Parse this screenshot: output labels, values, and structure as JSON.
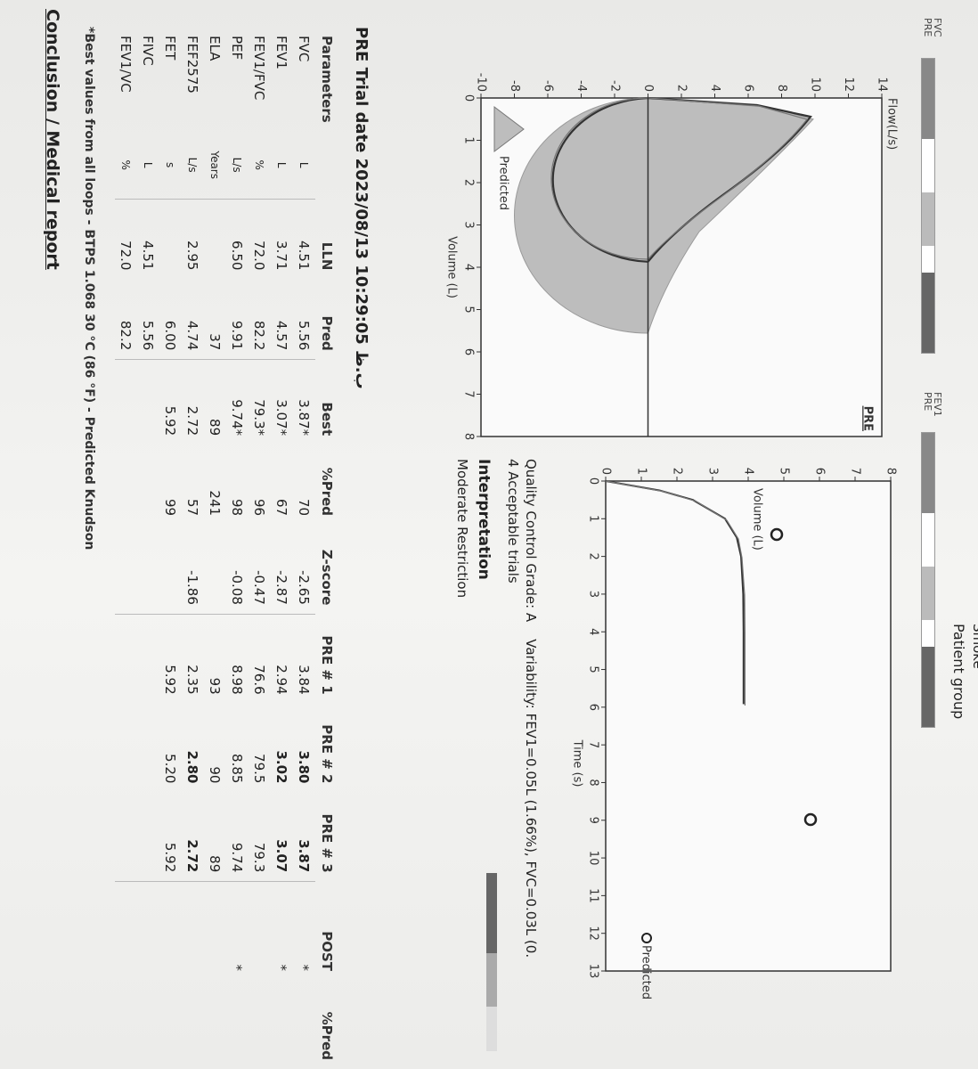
{
  "header": {
    "smoke": "Smoke",
    "patient_group": "Patient group",
    "indicators": [
      {
        "label": "FVC",
        "trial": "PRE"
      },
      {
        "label": "FEV1",
        "trial": "PRE"
      }
    ]
  },
  "flow_volume": {
    "y_label": "Flow(L/s)",
    "yticks": [
      14,
      12,
      10,
      8,
      6,
      4,
      2,
      0,
      -2,
      -4,
      -6,
      -8,
      -10
    ],
    "x_label": "Volume (L)",
    "xticks": [
      0,
      1,
      2,
      3,
      4,
      5,
      6,
      7,
      8
    ],
    "legend": "Predicted",
    "tag": "PRE"
  },
  "volume_time": {
    "y_label": "Volume (L)",
    "yticks": [
      0,
      1,
      2,
      3,
      4,
      5,
      6,
      7,
      8
    ],
    "x_label": "Time (s)",
    "xticks": [
      0,
      1,
      2,
      3,
      4,
      5,
      6,
      7,
      8,
      9,
      10,
      11,
      12,
      13
    ],
    "legend": "Predicted"
  },
  "quality": {
    "grade": "Quality Control Grade: A",
    "variability": "Variability: FEV1=0.05L (1.66%), FVC=0.03L (0.",
    "trials": "4 Acceptable trials"
  },
  "interpretation": {
    "title": "Interpretation",
    "result": "Moderate Restriction"
  },
  "results": {
    "title": "PRE Trial date 2023/08/13  10:29:05 ب.ظ",
    "columns": [
      "Parameters",
      null,
      "LLN",
      "Pred",
      "Best",
      "%Pred",
      "Z-score",
      "PRE # 1",
      "PRE # 2",
      "PRE # 3",
      "POST",
      "%Pred"
    ],
    "rows": [
      [
        "FVC",
        "L",
        "4.51",
        "5.56",
        "3.87*",
        "70",
        "-2.65",
        "3.84",
        "3.80",
        "3.87",
        "*",
        null
      ],
      [
        "FEV1",
        "L",
        "3.71",
        "4.57",
        "3.07*",
        "67",
        "-2.87",
        "2.94",
        "3.02",
        "3.07",
        "*",
        null
      ],
      [
        "FEV1/FVC",
        "%",
        "72.0",
        "82.2",
        "79.3*",
        "96",
        "-0.47",
        "76.6",
        "79.5",
        "79.3",
        null,
        null
      ],
      [
        "PEF",
        "L/s",
        "6.50",
        "9.91",
        "9.74*",
        "98",
        "-0.08",
        "8.98",
        "8.85",
        "9.74",
        "*",
        null
      ],
      [
        "ELA",
        "Years",
        null,
        "37",
        "89",
        "241",
        null,
        "93",
        "90",
        "89",
        null,
        null
      ],
      [
        "FEF2575",
        "L/s",
        "2.95",
        "4.74",
        "2.72",
        "57",
        "-1.86",
        "2.35",
        "2.80",
        "2.72",
        null,
        null
      ],
      [
        "FET",
        "s",
        null,
        "6.00",
        "5.92",
        "99",
        null,
        "5.92",
        "5.20",
        "5.92",
        null,
        null
      ],
      [
        "FIVC",
        "L",
        "4.51",
        "5.56",
        null,
        null,
        null,
        null,
        null,
        null,
        null,
        null
      ],
      [
        "FEV1/VC",
        "%",
        "72.0",
        "82.2",
        null,
        null,
        null,
        null,
        null,
        null,
        null,
        null
      ]
    ]
  },
  "footnote": "*Best values from all loops - BTPS 1.068 30 °C (86 °F) - Predicted Knudson",
  "conclusion": "Conclusion / Medical report"
}
